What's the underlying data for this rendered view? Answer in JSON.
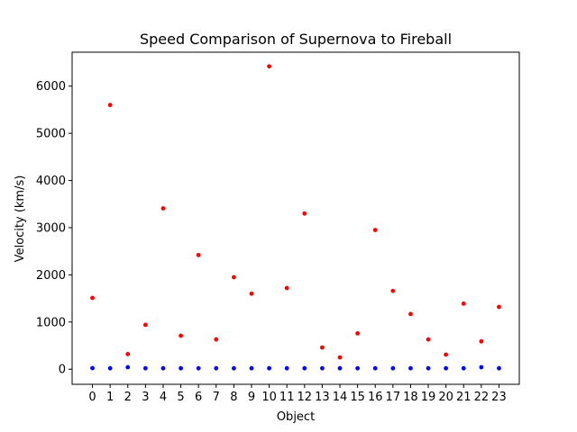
{
  "chart_data": {
    "type": "scatter",
    "title": "Speed Comparison of Supernova to Fireball",
    "xlabel": "Object",
    "ylabel": "Velocity (km/s)",
    "x": [
      0,
      1,
      2,
      3,
      4,
      5,
      6,
      7,
      8,
      9,
      10,
      11,
      12,
      13,
      14,
      15,
      16,
      17,
      18,
      19,
      20,
      21,
      22,
      23
    ],
    "xticks": [
      "0",
      "1",
      "2",
      "3",
      "4",
      "5",
      "6",
      "7",
      "8",
      "9",
      "10",
      "11",
      "12",
      "13",
      "14",
      "15",
      "16",
      "17",
      "18",
      "19",
      "20",
      "21",
      "22",
      "23"
    ],
    "yticks": [
      "0",
      "1000",
      "2000",
      "3000",
      "4000",
      "5000",
      "6000"
    ],
    "ylim": [
      -320,
      6720
    ],
    "xlim": [
      -1.15,
      24.15
    ],
    "grid": false,
    "legend": "none",
    "series": [
      {
        "color": "#ff0000",
        "values": [
          1510,
          5600,
          320,
          940,
          3410,
          710,
          2420,
          630,
          1950,
          1600,
          6420,
          1720,
          3300,
          460,
          250,
          760,
          2950,
          1660,
          1170,
          630,
          310,
          1390,
          590,
          1320
        ]
      },
      {
        "color": "#0000ff",
        "values": [
          22,
          20,
          42,
          20,
          20,
          20,
          20,
          20,
          20,
          20,
          20,
          20,
          20,
          20,
          20,
          20,
          20,
          20,
          20,
          20,
          20,
          20,
          42,
          20
        ]
      }
    ]
  }
}
